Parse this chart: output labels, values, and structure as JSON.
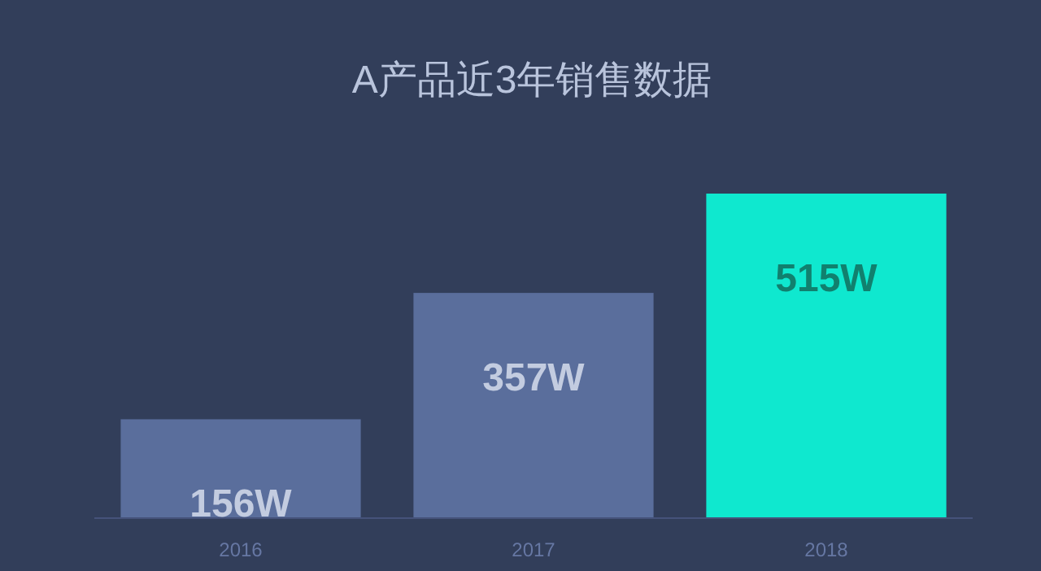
{
  "chart_data": {
    "type": "bar",
    "title": "A产品近3年销售数据",
    "categories": [
      "2016",
      "2017",
      "2018"
    ],
    "values": [
      156,
      357,
      515
    ],
    "colors": [
      "#5a6e9c",
      "#5a6e9c",
      "#0fe8cf"
    ],
    "value_labels": [
      "156W",
      "357W",
      "515W"
    ]
  }
}
